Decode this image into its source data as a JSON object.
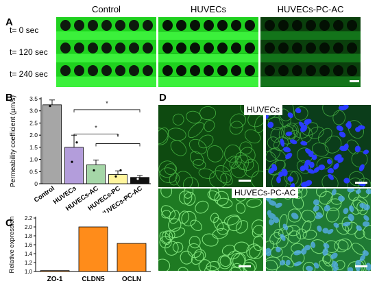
{
  "panel_letters": {
    "a": "A",
    "b": "B",
    "c": "C",
    "d": "D"
  },
  "panel_a": {
    "column_titles": [
      "Control",
      "HUVECs",
      "HUVECs-PC-AC"
    ],
    "time_labels": [
      "t= 0 sec",
      "t= 120 sec",
      "t= 240 sec"
    ]
  },
  "panel_d": {
    "label_top": "HUVECs",
    "label_bottom": "HUVECs-PC-AC"
  },
  "chart_data": [
    {
      "type": "bar",
      "categories": [
        "Control",
        "HUVECs",
        "HUVECs-AC",
        "HUVECs-PC",
        "HUVECs-PC-AC"
      ],
      "values": [
        3.25,
        1.5,
        0.78,
        0.38,
        0.26
      ],
      "errors": [
        0.2,
        0.5,
        0.2,
        0.15,
        0.08
      ],
      "points": [
        [
          3.2
        ],
        [
          0.9,
          1.7
        ],
        [
          0.55
        ],
        [
          0.3,
          0.55
        ],
        [
          0.2
        ]
      ],
      "colors": [
        "#a6a6a6",
        "#b39ddb",
        "#a5d6a7",
        "#fff59d",
        "#111111"
      ],
      "ylabel": "Permeability coefficient (µm/s)",
      "ylim": [
        0,
        3.5
      ],
      "yticks": [
        "0",
        "0.5",
        "1.0",
        "1.5",
        "2.0",
        "2.5",
        "3.0",
        "3.5"
      ],
      "significance_marker": "*",
      "grid": false
    },
    {
      "type": "bar",
      "categories": [
        "ZO-1",
        "CLDN5",
        "OCLN"
      ],
      "values": [
        1.02,
        2.0,
        1.63
      ],
      "color": "#ff8c1a",
      "ylabel": "Relative expression",
      "ylim": [
        1.0,
        2.2
      ],
      "yticks": [
        "1.0",
        "1.2",
        "1.4",
        "1.6",
        "1.8",
        "2.0",
        "2.2"
      ],
      "grid": false
    }
  ]
}
